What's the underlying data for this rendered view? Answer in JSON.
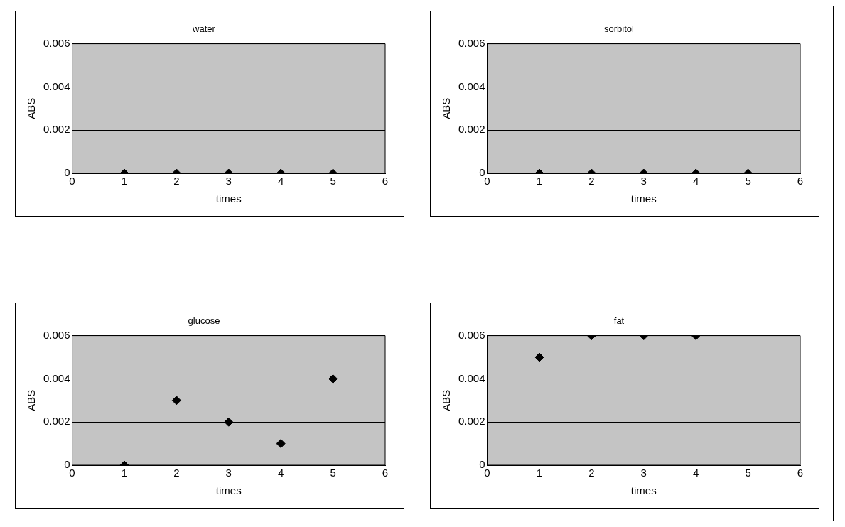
{
  "chart_data": [
    {
      "type": "scatter",
      "title": "water",
      "xlabel": "times",
      "ylabel": "ABS",
      "x": [
        1,
        2,
        3,
        4,
        5
      ],
      "values": [
        0,
        0,
        0,
        0,
        0
      ],
      "color": "#000000",
      "marker": "diamond",
      "xlim": [
        0,
        6
      ],
      "xticks": [
        0,
        1,
        2,
        3,
        4,
        5,
        6
      ],
      "ylim": [
        0,
        0.006
      ],
      "yticks": [
        0,
        0.002,
        0.004,
        0.006
      ],
      "grid": "y"
    },
    {
      "type": "scatter",
      "title": "sorbitol",
      "xlabel": "times",
      "ylabel": "ABS",
      "x": [
        1,
        2,
        3,
        4,
        5
      ],
      "values": [
        0,
        0,
        0,
        0,
        0
      ],
      "color": "#000000",
      "marker": "diamond",
      "xlim": [
        0,
        6
      ],
      "xticks": [
        0,
        1,
        2,
        3,
        4,
        5,
        6
      ],
      "ylim": [
        0,
        0.006
      ],
      "yticks": [
        0,
        0.002,
        0.004,
        0.006
      ],
      "grid": "y"
    },
    {
      "type": "scatter",
      "title": "glucose",
      "xlabel": "times",
      "ylabel": "ABS",
      "x": [
        1,
        2,
        3,
        4,
        5
      ],
      "values": [
        0,
        0.003,
        0.002,
        0.001,
        0.004
      ],
      "color": "#000000",
      "marker": "diamond",
      "xlim": [
        0,
        6
      ],
      "xticks": [
        0,
        1,
        2,
        3,
        4,
        5,
        6
      ],
      "ylim": [
        0,
        0.006
      ],
      "yticks": [
        0,
        0.002,
        0.004,
        0.006
      ],
      "grid": "y"
    },
    {
      "type": "scatter",
      "title": "fat",
      "xlabel": "times",
      "ylabel": "ABS",
      "x": [
        1,
        2,
        3,
        4
      ],
      "values": [
        0.005,
        0.006,
        0.006,
        0.006
      ],
      "color": "#000000",
      "marker": "diamond",
      "xlim": [
        0,
        6
      ],
      "xticks": [
        0,
        1,
        2,
        3,
        4,
        5,
        6
      ],
      "ylim": [
        0,
        0.006
      ],
      "yticks": [
        0,
        0.002,
        0.004,
        0.006
      ],
      "grid": "y"
    }
  ]
}
